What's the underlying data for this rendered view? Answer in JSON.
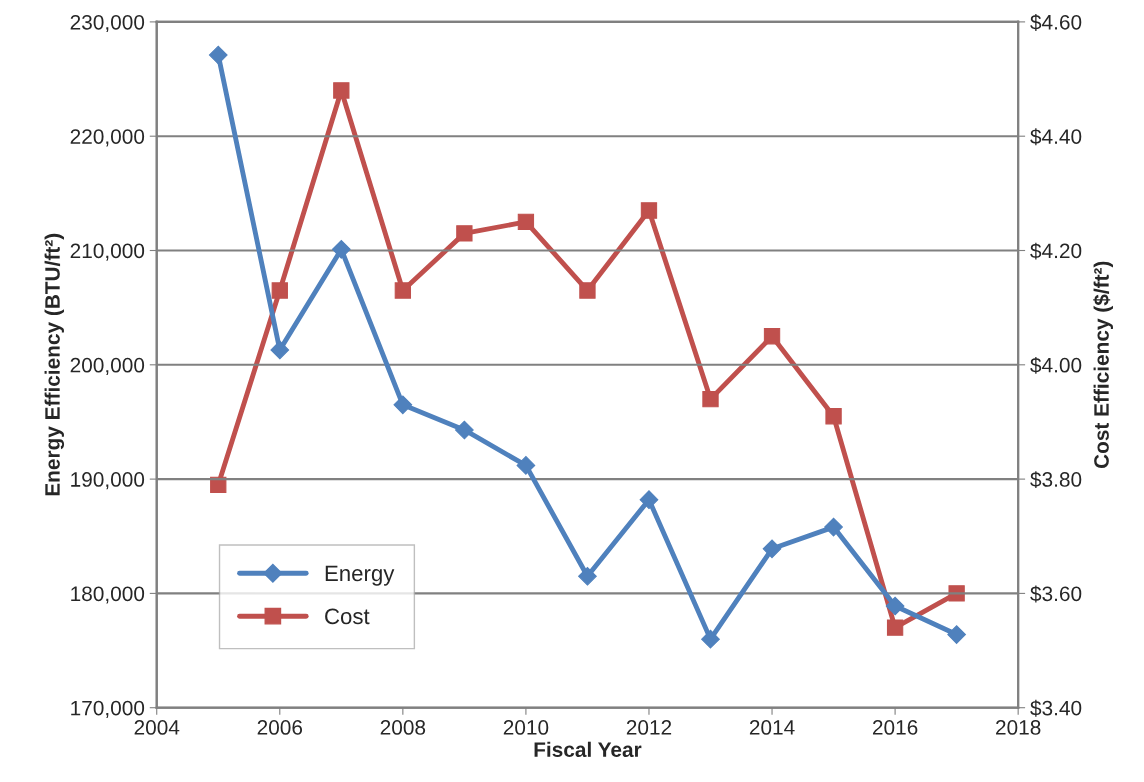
{
  "chart_data": {
    "type": "line",
    "xlabel": "Fiscal Year",
    "ylabel": "Energy Efficiency (BTU/ft²)",
    "y2label": "Cost Efficiency ($/ft²)",
    "x": [
      2005,
      2006,
      2007,
      2008,
      2009,
      2010,
      2011,
      2012,
      2013,
      2014,
      2015,
      2016,
      2017
    ],
    "series": [
      {
        "name": "Energy",
        "color": "#4f81bd",
        "marker": "diamond",
        "values": [
          227100,
          201300,
          210100,
          196500,
          194300,
          191200,
          181500,
          188200,
          176000,
          183900,
          185800,
          178900,
          176400
        ]
      },
      {
        "name": "Cost",
        "color": "#c0504d",
        "marker": "square",
        "axis": "y2",
        "values": [
          3.79,
          4.13,
          4.48,
          4.13,
          4.23,
          4.25,
          4.13,
          4.27,
          3.94,
          4.05,
          3.91,
          3.54,
          3.6
        ]
      }
    ],
    "xlim": [
      2004,
      2018
    ],
    "xticks": [
      2004,
      2006,
      2008,
      2010,
      2012,
      2014,
      2016,
      2018
    ],
    "ylim": [
      170000,
      230000
    ],
    "yticks": [
      {
        "value": 170000,
        "label": "170,000"
      },
      {
        "value": 180000,
        "label": "180,000"
      },
      {
        "value": 190000,
        "label": "190,000"
      },
      {
        "value": 200000,
        "label": "200,000"
      },
      {
        "value": 210000,
        "label": "210,000"
      },
      {
        "value": 220000,
        "label": "220,000"
      },
      {
        "value": 230000,
        "label": "230,000"
      }
    ],
    "y2lim": [
      3.4,
      4.6
    ],
    "y2ticks": [
      {
        "value": 3.4,
        "label": "$3.40"
      },
      {
        "value": 3.6,
        "label": "$3.60"
      },
      {
        "value": 3.8,
        "label": "$3.80"
      },
      {
        "value": 4.0,
        "label": "$4.00"
      },
      {
        "value": 4.2,
        "label": "$4.20"
      },
      {
        "value": 4.4,
        "label": "$4.40"
      },
      {
        "value": 4.6,
        "label": "$4.60"
      }
    ],
    "grid": "y",
    "legend": "bottom left",
    "line_style": "solid"
  }
}
